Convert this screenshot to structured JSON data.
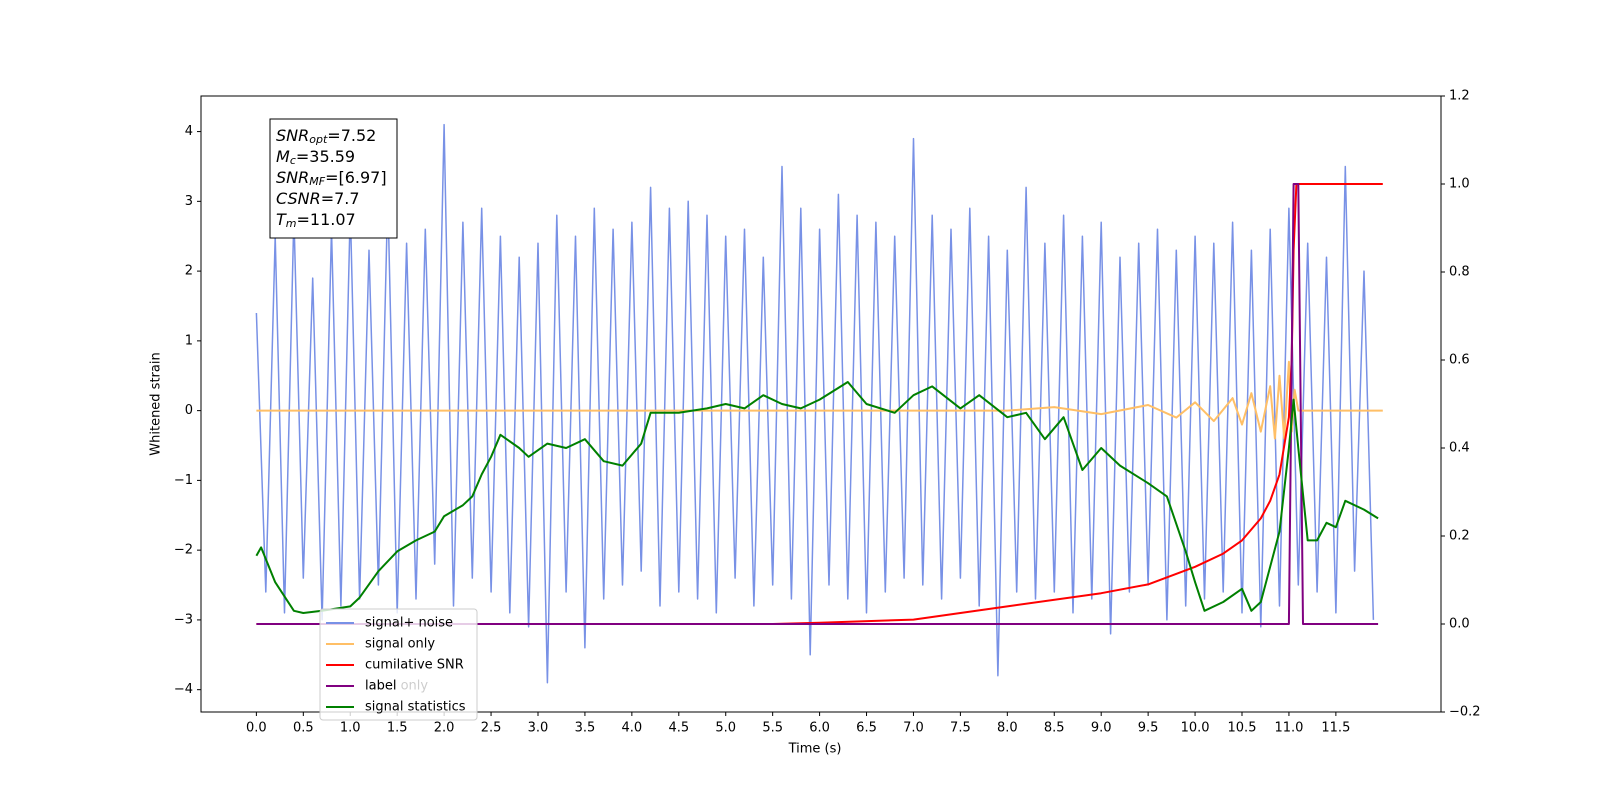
{
  "chart_data": {
    "type": "line",
    "xlabel": "Time (s)",
    "ylabel": "Whitened strain",
    "xlim": [
      -0.59,
      12.62
    ],
    "ylim": [
      -4.32,
      4.51
    ],
    "y2lim": [
      -0.2,
      1.2
    ],
    "xticks": [
      {
        "value": 0,
        "label": "0.0"
      },
      0.5,
      {
        "value": 1,
        "label": "1.0"
      },
      1.5,
      {
        "value": 2,
        "label": "2.0"
      },
      2.5,
      {
        "value": 3,
        "label": "3.0"
      },
      3.5,
      {
        "value": 4,
        "label": "4.0"
      },
      4.5,
      {
        "value": 5,
        "label": "5.0"
      },
      5.5,
      {
        "value": 6,
        "label": "6.0"
      },
      6.5,
      {
        "value": 7,
        "label": "7.0"
      },
      7.5,
      {
        "value": 8,
        "label": "8.0"
      },
      8.5,
      {
        "value": 9,
        "label": "9.0"
      },
      9.5,
      {
        "value": 10,
        "label": "10.0"
      },
      10.5,
      {
        "value": 11,
        "label": "11.0"
      },
      11.5
    ],
    "yticks": [
      {
        "value": -4,
        "label": "−4"
      },
      {
        "value": -3,
        "label": "−3"
      },
      {
        "value": -2,
        "label": "−2"
      },
      {
        "value": -1,
        "label": "−1"
      },
      0,
      1,
      2,
      3,
      4
    ],
    "y2ticks": [
      {
        "value": -0.2,
        "label": "−0.2"
      },
      {
        "value": 0,
        "label": "0.0"
      },
      0.2,
      0.4,
      0.6,
      0.8,
      {
        "value": 1,
        "label": "1.0"
      },
      1.2
    ],
    "grid": false,
    "legend": "lower left",
    "legend_ghost_labels": [
      "label only"
    ],
    "annotation": [
      {
        "symbol": "SNR",
        "subscript": "opt",
        "text": "=7.52"
      },
      {
        "symbol": "M",
        "subscript": "c",
        "text": "=35.59"
      },
      {
        "symbol": "SNR",
        "subscript": "MF",
        "text": "=[6.97]"
      },
      {
        "symbol": "CSNR",
        "subscript": null,
        "text": "=7.7"
      },
      {
        "symbol": "T",
        "subscript": "m",
        "text": "=11.07"
      }
    ],
    "series": [
      {
        "name": "signal+ noise",
        "color": "#7891e6",
        "x": [
          0.0,
          0.1,
          0.2,
          0.3,
          0.4,
          0.5,
          0.6,
          0.7,
          0.8,
          0.9,
          1.0,
          1.1,
          1.2,
          1.3,
          1.4,
          1.5,
          1.6,
          1.7,
          1.8,
          1.9,
          2.0,
          2.1,
          2.2,
          2.3,
          2.4,
          2.5,
          2.6,
          2.7,
          2.8,
          2.9,
          3.0,
          3.1,
          3.2,
          3.3,
          3.4,
          3.5,
          3.6,
          3.7,
          3.8,
          3.9,
          4.0,
          4.1,
          4.2,
          4.3,
          4.4,
          4.5,
          4.6,
          4.7,
          4.8,
          4.9,
          5.0,
          5.1,
          5.2,
          5.3,
          5.4,
          5.5,
          5.6,
          5.7,
          5.8,
          5.9,
          6.0,
          6.1,
          6.2,
          6.3,
          6.4,
          6.5,
          6.6,
          6.7,
          6.8,
          6.9,
          7.0,
          7.1,
          7.2,
          7.3,
          7.4,
          7.5,
          7.6,
          7.7,
          7.8,
          7.9,
          8.0,
          8.1,
          8.2,
          8.3,
          8.4,
          8.5,
          8.6,
          8.7,
          8.8,
          8.9,
          9.0,
          9.1,
          9.2,
          9.3,
          9.4,
          9.5,
          9.6,
          9.7,
          9.8,
          9.9,
          10.0,
          10.1,
          10.2,
          10.3,
          10.4,
          10.5,
          10.6,
          10.7,
          10.8,
          10.9,
          11.0,
          11.1,
          11.2,
          11.3,
          11.4,
          11.5,
          11.6,
          11.7,
          11.8,
          11.9
        ],
        "values": [
          1.4,
          -2.6,
          2.5,
          -2.9,
          2.8,
          -2.4,
          1.9,
          -3.0,
          2.6,
          -2.8,
          2.9,
          -2.7,
          2.3,
          -2.5,
          3.1,
          -2.9,
          2.4,
          -2.7,
          2.6,
          -2.2,
          4.1,
          -2.8,
          2.7,
          -2.4,
          2.9,
          -2.6,
          2.5,
          -2.9,
          2.2,
          -3.1,
          2.4,
          -3.9,
          2.8,
          -2.6,
          2.5,
          -3.4,
          2.9,
          -2.7,
          2.6,
          -2.5,
          2.7,
          -2.3,
          3.2,
          -2.8,
          2.9,
          -2.6,
          3.0,
          -2.7,
          2.8,
          -2.9,
          2.5,
          -2.4,
          2.6,
          -2.8,
          2.2,
          -2.5,
          3.5,
          -2.7,
          2.9,
          -3.5,
          2.6,
          -2.5,
          3.1,
          -2.7,
          2.8,
          -2.9,
          2.7,
          -2.6,
          2.5,
          -2.4,
          3.9,
          -2.5,
          2.8,
          -2.7,
          2.6,
          -2.4,
          2.9,
          -2.8,
          2.5,
          -3.8,
          2.3,
          -2.6,
          3.2,
          -2.7,
          2.4,
          -2.6,
          2.8,
          -2.9,
          2.5,
          -2.7,
          2.7,
          -3.2,
          2.2,
          -2.6,
          2.4,
          -2.5,
          2.6,
          -3.0,
          2.3,
          -2.8,
          2.5,
          -2.7,
          2.4,
          -2.6,
          2.7,
          -2.9,
          2.3,
          -3.1,
          2.6,
          -2.8,
          2.9,
          -2.5,
          2.4,
          -2.6,
          2.2,
          -2.9,
          3.5,
          -2.3,
          2.0,
          -3.0
        ]
      },
      {
        "name": "signal only",
        "color": "#ffbf66",
        "x": [
          0,
          8,
          8.5,
          9,
          9.5,
          9.8,
          10,
          10.2,
          10.4,
          10.5,
          10.6,
          10.7,
          10.8,
          10.85,
          10.9,
          10.95,
          11.0,
          11.03,
          11.06,
          11.1,
          12.0
        ],
        "values": [
          0,
          0,
          0.05,
          -0.05,
          0.08,
          -0.1,
          0.12,
          -0.15,
          0.18,
          -0.2,
          0.25,
          -0.3,
          0.35,
          -0.4,
          0.5,
          -0.4,
          0.7,
          -0.3,
          0.3,
          0,
          0
        ]
      },
      {
        "name": "cumilative SNR",
        "color": "#ff0000",
        "axis": "y2",
        "x": [
          0,
          5.5,
          6,
          7,
          8,
          9,
          9.5,
          10,
          10.3,
          10.5,
          10.7,
          10.8,
          10.9,
          11.0,
          11.03,
          11.05,
          11.08,
          12.0
        ],
        "values": [
          0,
          0,
          0.003,
          0.01,
          0.04,
          0.07,
          0.09,
          0.13,
          0.16,
          0.19,
          0.24,
          0.28,
          0.34,
          0.47,
          0.6,
          0.85,
          1.0,
          1.0
        ]
      },
      {
        "name": "label",
        "color": "#800080",
        "axis": "y2",
        "x": [
          0,
          11.0,
          11.05,
          11.1,
          11.15,
          11.95
        ],
        "values": [
          0,
          0,
          1,
          1,
          0,
          0
        ]
      },
      {
        "name": "signal statistics",
        "color": "#008000",
        "axis": "y2",
        "x": [
          0,
          0.05,
          0.2,
          0.4,
          0.5,
          0.7,
          1.0,
          1.1,
          1.3,
          1.5,
          1.7,
          1.9,
          2.0,
          2.2,
          2.3,
          2.4,
          2.5,
          2.6,
          2.8,
          2.9,
          3.1,
          3.3,
          3.5,
          3.7,
          3.9,
          4.1,
          4.2,
          4.5,
          4.8,
          5.0,
          5.2,
          5.4,
          5.6,
          5.8,
          6.0,
          6.3,
          6.5,
          6.8,
          7.0,
          7.2,
          7.5,
          7.7,
          8.0,
          8.2,
          8.4,
          8.6,
          8.8,
          9.0,
          9.2,
          9.5,
          9.7,
          9.9,
          10.0,
          10.1,
          10.3,
          10.5,
          10.6,
          10.7,
          10.9,
          11.0,
          11.05,
          11.1,
          11.2,
          11.3,
          11.4,
          11.5,
          11.6,
          11.8,
          11.95
        ],
        "values": [
          0.155,
          0.174,
          0.095,
          0.03,
          0.025,
          0.03,
          0.04,
          0.06,
          0.12,
          0.165,
          0.19,
          0.21,
          0.245,
          0.27,
          0.29,
          0.34,
          0.38,
          0.43,
          0.4,
          0.38,
          0.41,
          0.4,
          0.42,
          0.37,
          0.36,
          0.41,
          0.48,
          0.48,
          0.49,
          0.5,
          0.49,
          0.52,
          0.5,
          0.49,
          0.51,
          0.55,
          0.5,
          0.48,
          0.52,
          0.54,
          0.49,
          0.52,
          0.47,
          0.48,
          0.42,
          0.47,
          0.35,
          0.4,
          0.36,
          0.32,
          0.29,
          0.165,
          0.095,
          0.03,
          0.05,
          0.08,
          0.03,
          0.05,
          0.21,
          0.4,
          0.51,
          0.4,
          0.19,
          0.19,
          0.23,
          0.22,
          0.28,
          0.26,
          0.24
        ]
      }
    ]
  }
}
